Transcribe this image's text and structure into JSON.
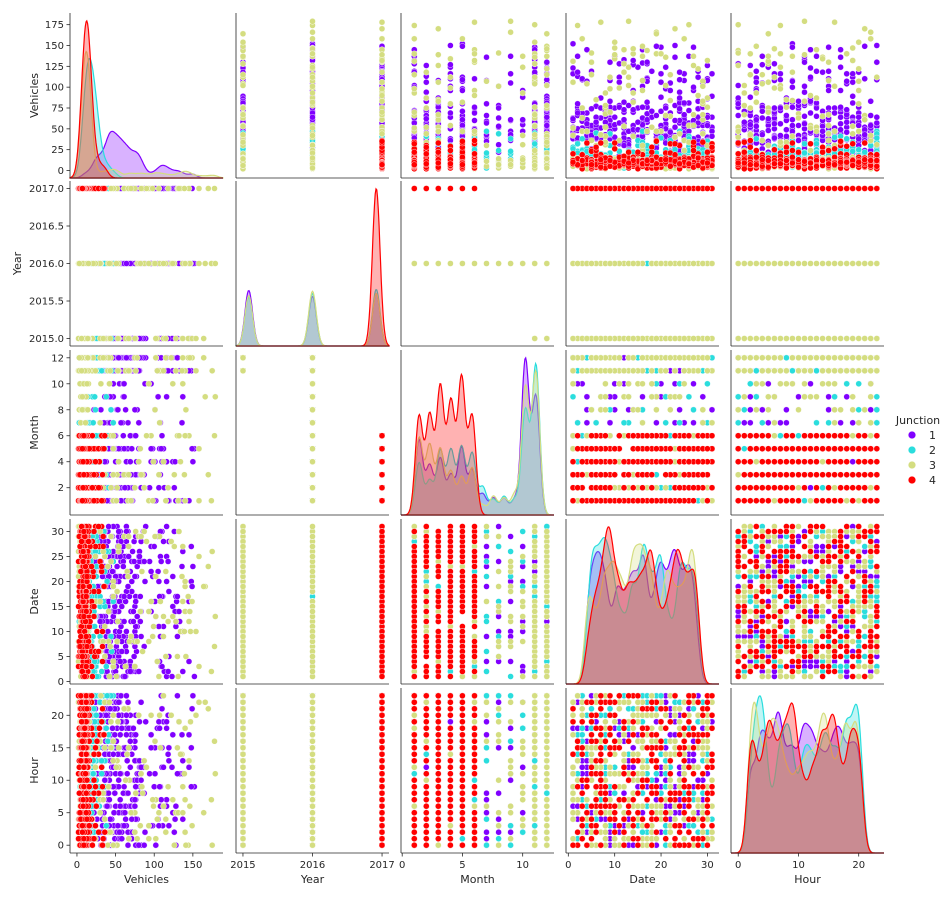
{
  "chart_data": {
    "type": "scatter",
    "variables": [
      "Vehicles",
      "Year",
      "Month",
      "Date",
      "Hour"
    ],
    "hue": {
      "title": "Junction",
      "levels": [
        {
          "label": "1",
          "color": "#8000ff"
        },
        {
          "label": "2",
          "color": "#2adddd"
        },
        {
          "label": "3",
          "color": "#d4dd80"
        },
        {
          "label": "4",
          "color": "#ff0000"
        }
      ]
    },
    "axes": {
      "Vehicles": {
        "lim": [
          -9,
          189
        ],
        "ticks": [
          0,
          25,
          50,
          75,
          100,
          125,
          150,
          175
        ],
        "xticks": [
          0,
          50,
          100,
          150
        ]
      },
      "Year": {
        "lim": [
          2014.9,
          2017.1
        ],
        "ticks": [
          2015.0,
          2015.5,
          2016.0,
          2016.5,
          2017.0
        ],
        "xticks": [
          2015,
          2016,
          2017
        ],
        "tick_labels": [
          "2015.0",
          "2015.5",
          "2016.0",
          "2016.5",
          "2017.0"
        ]
      },
      "Month": {
        "lim": [
          -0.1,
          12.6
        ],
        "ticks": [
          2,
          4,
          6,
          8,
          10,
          12
        ],
        "xticks": [
          0,
          5,
          10
        ]
      },
      "Date": {
        "lim": [
          -0.5,
          32.5
        ],
        "ticks": [
          0,
          5,
          10,
          15,
          20,
          25,
          30
        ],
        "xticks": [
          0,
          10,
          20,
          30
        ]
      },
      "Hour": {
        "lim": [
          -1.2,
          24.2
        ],
        "ticks": [
          0,
          5,
          10,
          15,
          20
        ],
        "xticks": [
          0,
          10,
          20
        ]
      }
    },
    "diag_x_ranges": {
      "Vehicles": [
        -12,
        188
      ],
      "Year": [
        2014.8,
        2017.2
      ],
      "Month": [
        -0.7,
        13.7
      ],
      "Date": [
        -5,
        37
      ],
      "Hour": [
        -4,
        28
      ]
    },
    "junction_profiles": {
      "1": {
        "vehicles_min": 5,
        "vehicles_max": 156,
        "vehicles_mode": 40,
        "years": [
          2015,
          2016,
          2017
        ]
      },
      "2": {
        "vehicles_min": 1,
        "vehicles_max": 48,
        "vehicles_mode": 12,
        "years": [
          2015,
          2016,
          2017
        ]
      },
      "3": {
        "vehicles_min": 1,
        "vehicles_max": 180,
        "vehicles_mode": 8,
        "years": [
          2015,
          2016,
          2017
        ]
      },
      "4": {
        "vehicles_min": 1,
        "vehicles_max": 36,
        "vehicles_mode": 8,
        "years": [
          2017
        ]
      }
    },
    "grid": false,
    "legend_position": "right"
  }
}
